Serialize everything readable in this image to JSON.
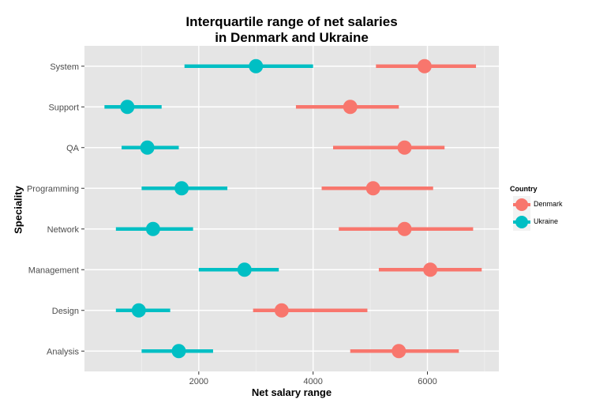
{
  "chart_data": {
    "type": "dot-range",
    "title_lines": [
      "Interquartile range of net salaries",
      "in Denmark and Ukraine"
    ],
    "xlabel": "Net salary range",
    "ylabel": "Speciality",
    "xlim": [
      0,
      7250
    ],
    "x_ticks": [
      2000,
      4000,
      6000
    ],
    "categories": [
      "Analysis",
      "Design",
      "Management",
      "Network",
      "Programming",
      "QA",
      "Support",
      "System"
    ],
    "legend": {
      "title": "Country",
      "placement": "right"
    },
    "series": [
      {
        "name": "Denmark",
        "color": "#F8766D",
        "low": [
          4650,
          2950,
          5150,
          4450,
          4150,
          4350,
          3700,
          5100
        ],
        "median": [
          5500,
          3450,
          6050,
          5600,
          5050,
          5600,
          4650,
          5950
        ],
        "high": [
          6550,
          4950,
          6950,
          6800,
          6100,
          6300,
          5500,
          6850
        ]
      },
      {
        "name": "Ukraine",
        "color": "#00BFC4",
        "low": [
          1000,
          550,
          2000,
          550,
          1000,
          650,
          350,
          1750
        ],
        "median": [
          1650,
          950,
          2800,
          1200,
          1700,
          1100,
          750,
          3000
        ],
        "high": [
          2250,
          1500,
          3400,
          1900,
          2500,
          1650,
          1350,
          4000
        ]
      }
    ]
  }
}
